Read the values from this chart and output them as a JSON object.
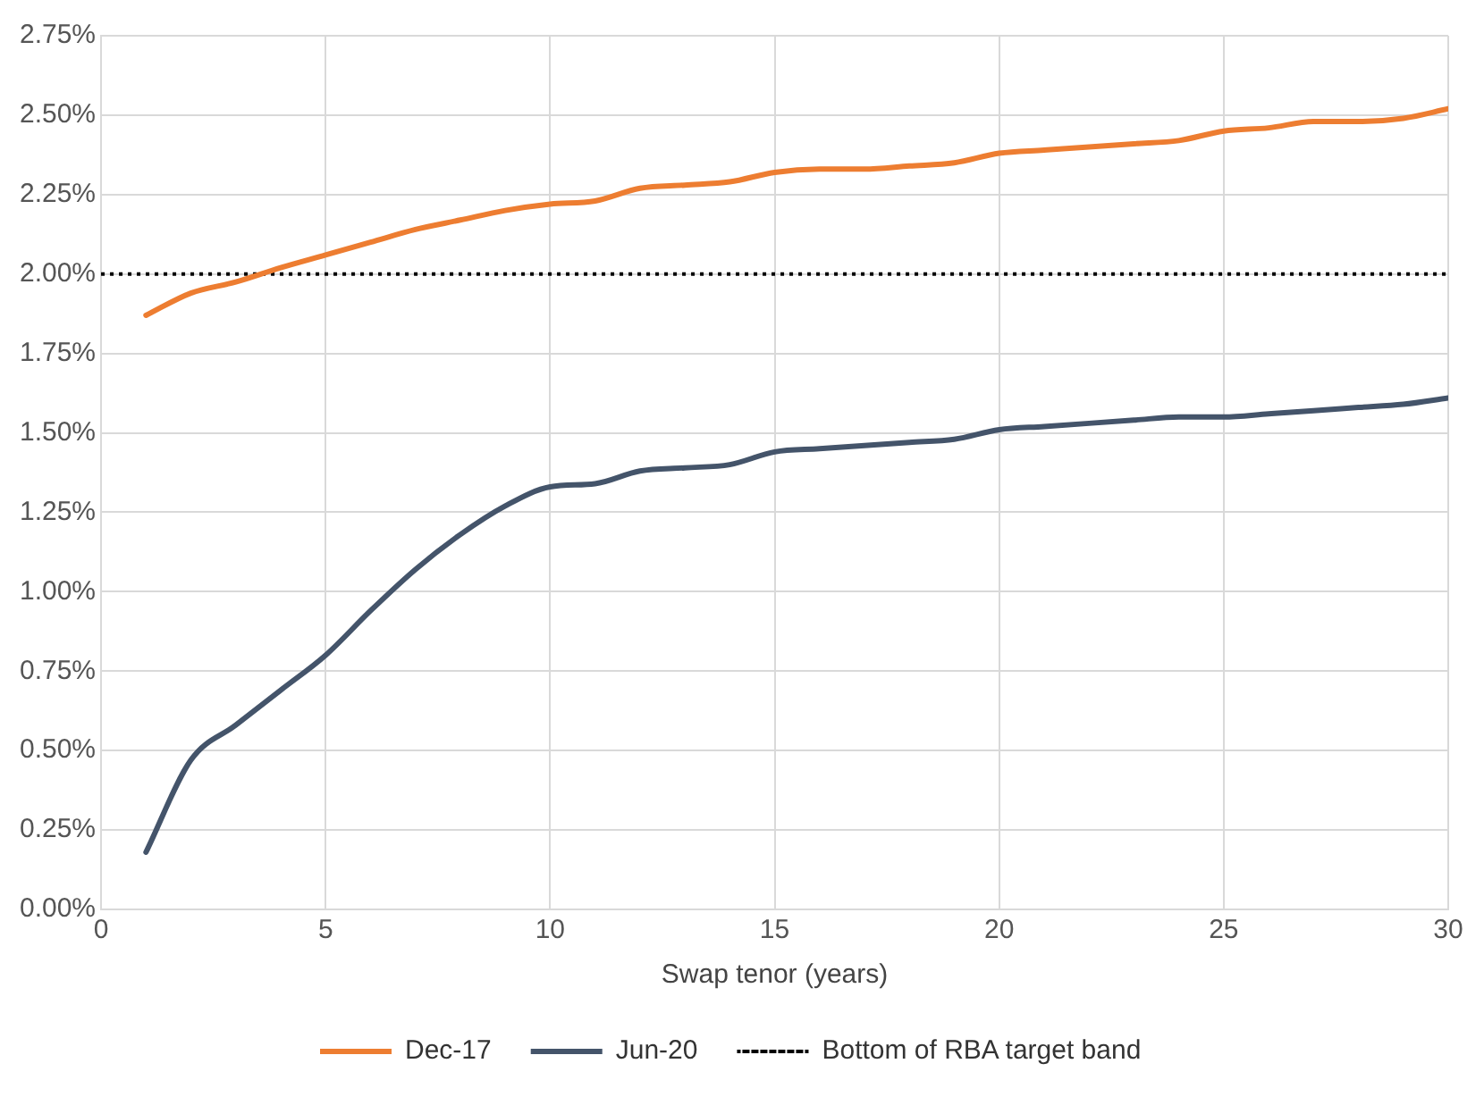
{
  "chart_data": {
    "type": "line",
    "xlabel": "Swap tenor (years)",
    "x": [
      1,
      2,
      3,
      4,
      5,
      6,
      7,
      8,
      9,
      10,
      11,
      12,
      13,
      14,
      15,
      16,
      17,
      18,
      19,
      20,
      21,
      22,
      23,
      24,
      25,
      26,
      27,
      28,
      29,
      30
    ],
    "series": [
      {
        "name": "Dec-17",
        "color": "#ed7d31",
        "values": [
          1.87,
          1.94,
          1.975,
          2.02,
          2.06,
          2.1,
          2.14,
          2.17,
          2.2,
          2.22,
          2.23,
          2.27,
          2.28,
          2.29,
          2.32,
          2.33,
          2.33,
          2.34,
          2.35,
          2.38,
          2.39,
          2.4,
          2.41,
          2.42,
          2.45,
          2.46,
          2.48,
          2.48,
          2.49,
          2.52
        ]
      },
      {
        "name": "Jun-20",
        "color": "#44546a",
        "values": [
          0.18,
          0.47,
          0.58,
          0.69,
          0.8,
          0.94,
          1.07,
          1.18,
          1.27,
          1.33,
          1.34,
          1.38,
          1.39,
          1.4,
          1.44,
          1.45,
          1.46,
          1.47,
          1.48,
          1.51,
          1.52,
          1.53,
          1.54,
          1.55,
          1.55,
          1.56,
          1.57,
          1.58,
          1.59,
          1.61
        ]
      }
    ],
    "ref_lines": [
      {
        "axis": "y",
        "value": 2.0,
        "label": "Bottom of RBA target band",
        "color": "#000000",
        "line_style": "dotted"
      }
    ],
    "xlim": [
      0,
      30
    ],
    "xticks": [
      0,
      5,
      10,
      15,
      20,
      25,
      30
    ],
    "ylim": [
      0,
      2.75
    ],
    "yticks": [
      {
        "value": 0,
        "label": "0.00%"
      },
      {
        "value": 0.25,
        "label": "0.25%"
      },
      {
        "value": 0.5,
        "label": "0.50%"
      },
      {
        "value": 0.75,
        "label": "0.75%"
      },
      {
        "value": 1,
        "label": "1.00%"
      },
      {
        "value": 1.25,
        "label": "1.25%"
      },
      {
        "value": 1.5,
        "label": "1.50%"
      },
      {
        "value": 1.75,
        "label": "1.75%"
      },
      {
        "value": 2,
        "label": "2.00%"
      },
      {
        "value": 2.25,
        "label": "2.25%"
      },
      {
        "value": 2.5,
        "label": "2.50%"
      },
      {
        "value": 2.75,
        "label": "2.75%"
      }
    ],
    "grid": true,
    "legend": "bottom",
    "marker": "none",
    "line_style": "solid"
  }
}
